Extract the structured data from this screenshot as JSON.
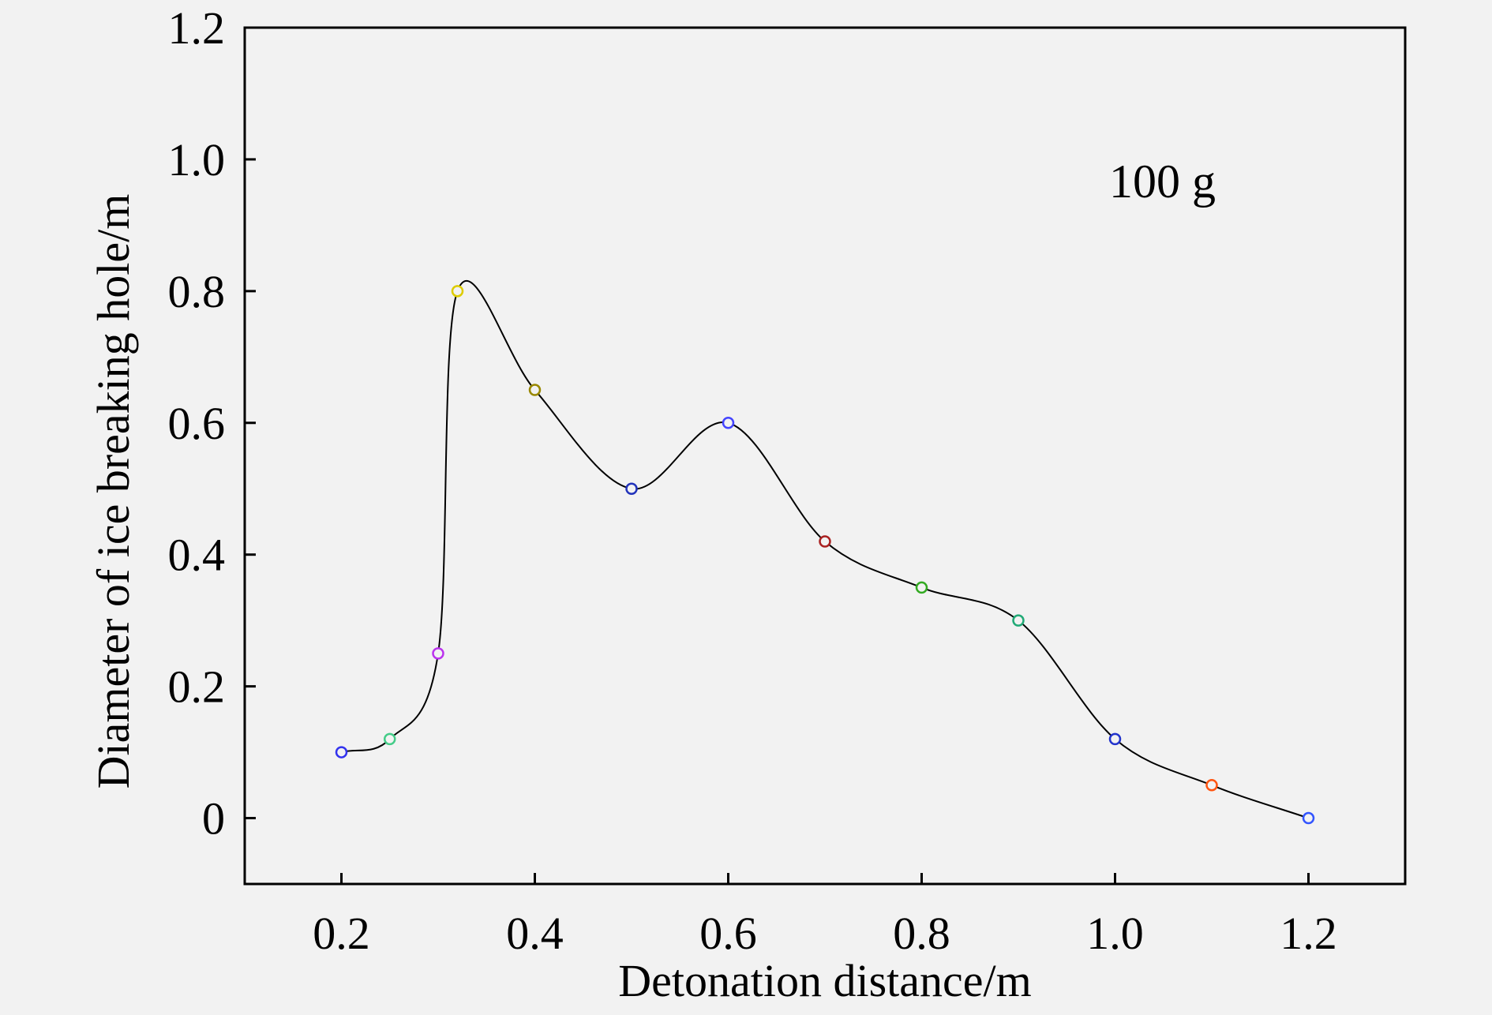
{
  "chart_data": {
    "type": "line",
    "title": "",
    "annotation": "100 g",
    "xlabel": "Detonation distance/m",
    "ylabel": "Diameter of ice breaking hole/m",
    "xlim": [
      0.1,
      1.3
    ],
    "ylim": [
      -0.1,
      1.2
    ],
    "x_ticks": [
      "0.2",
      "0.4",
      "0.6",
      "0.8",
      "1.0",
      "1.2"
    ],
    "y_ticks": [
      "0",
      "0.2",
      "0.4",
      "0.6",
      "0.8",
      "1.0",
      "1.2"
    ],
    "grid": false,
    "legend": "none",
    "series": [
      {
        "x": [
          0.2,
          0.25,
          0.3,
          0.32,
          0.4,
          0.5,
          0.6,
          0.7,
          0.8,
          0.9,
          1.0,
          1.1,
          1.2
        ],
        "y": [
          0.1,
          0.12,
          0.25,
          0.8,
          0.65,
          0.5,
          0.6,
          0.42,
          0.35,
          0.3,
          0.12,
          0.05,
          0.0
        ],
        "marker_colors": [
          "#3333ee",
          "#44cc88",
          "#bb33ee",
          "#ddcc00",
          "#998800",
          "#2233bb",
          "#4444ff",
          "#aa2222",
          "#33aa22",
          "#22aa77",
          "#2233cc",
          "#ff5511",
          "#3355ff"
        ]
      }
    ],
    "curve_color": "#000000"
  }
}
